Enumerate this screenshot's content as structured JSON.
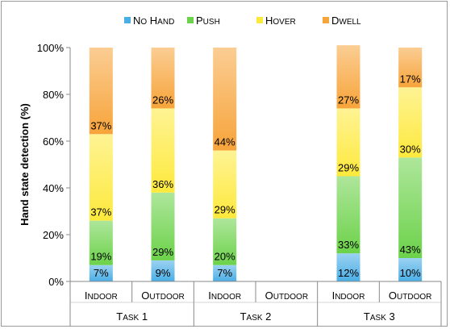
{
  "chart_data": {
    "type": "bar",
    "stacked": true,
    "ylabel": "Hand state detection (%)",
    "yticks": [
      "0%",
      "20%",
      "40%",
      "60%",
      "80%",
      "100%"
    ],
    "ylim": [
      0,
      100
    ],
    "legend_position": "top",
    "groups": [
      {
        "label": "Task 1",
        "categories": [
          "Indoor",
          "Outdoor"
        ]
      },
      {
        "label": "Task 2",
        "categories": [
          "Indoor",
          "Outdoor"
        ]
      },
      {
        "label": "Task 3",
        "categories": [
          "Indoor",
          "Outdoor"
        ]
      }
    ],
    "categories": [
      "Indoor",
      "Outdoor",
      "Indoor",
      "Outdoor",
      "Indoor",
      "Outdoor"
    ],
    "series": [
      {
        "name": "No Hand",
        "color": "#4aaee6",
        "values": [
          7,
          9,
          7,
          null,
          12,
          10
        ],
        "labels": [
          "7%",
          "9%",
          "7%",
          "",
          "12%",
          "10%"
        ]
      },
      {
        "name": "Push",
        "color": "#6cd24a",
        "values": [
          19,
          29,
          20,
          null,
          33,
          43
        ],
        "labels": [
          "19%",
          "29%",
          "20%",
          "",
          "33%",
          "43%"
        ]
      },
      {
        "name": "Hover",
        "color": "#fde93c",
        "values": [
          37,
          36,
          29,
          null,
          29,
          30
        ],
        "labels": [
          "37%",
          "36%",
          "29%",
          "",
          "29%",
          "30%"
        ]
      },
      {
        "name": "Dwell",
        "color": "#f7a43a",
        "values": [
          37,
          26,
          44,
          null,
          27,
          17
        ],
        "labels": [
          "37%",
          "26%",
          "44%",
          "",
          "27%",
          "17%"
        ]
      }
    ],
    "grid": false
  }
}
